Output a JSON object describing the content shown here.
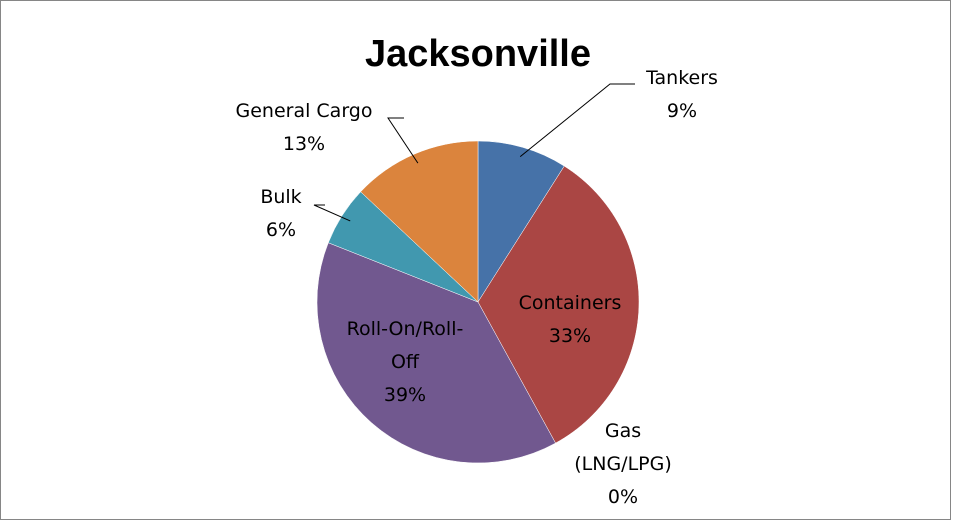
{
  "chart_data": {
    "type": "pie",
    "title": "Jacksonville",
    "start_angle_deg": 0,
    "direction": "clockwise",
    "slices": [
      {
        "label_lines": [
          "Tankers",
          "9%"
        ],
        "category": "Tankers",
        "value": 9,
        "color": "#4672A8"
      },
      {
        "label_lines": [
          "Containers",
          "33%"
        ],
        "category": "Containers",
        "value": 33,
        "color": "#AA4644"
      },
      {
        "label_lines": [
          "Gas",
          "(LNG/LPG)",
          "0%"
        ],
        "category": "Gas (LNG/LPG)",
        "value": 0,
        "color": "#89A54E"
      },
      {
        "label_lines": [
          "Roll-On/Roll-",
          "Off",
          "39%"
        ],
        "category": "Roll-On/Roll-Off",
        "value": 39,
        "color": "#71588F"
      },
      {
        "label_lines": [
          "Bulk",
          "6%"
        ],
        "category": "Bulk",
        "value": 6,
        "color": "#4198AF"
      },
      {
        "label_lines": [
          "General Cargo",
          "13%"
        ],
        "category": "General Cargo",
        "value": 13,
        "color": "#DB843D"
      }
    ]
  }
}
